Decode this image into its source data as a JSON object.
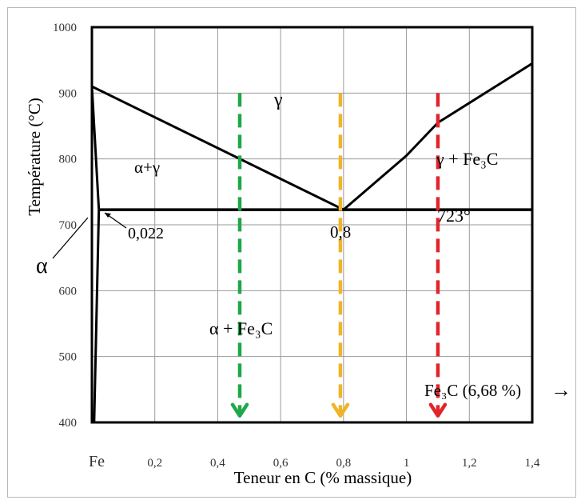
{
  "chart_data": {
    "type": "line",
    "xlabel": "Teneur en C (% massique)",
    "ylabel": "Température (°C)",
    "xlim": [
      0,
      1.4
    ],
    "ylim": [
      400,
      1000
    ],
    "x_ticks": [
      "Fe",
      "0,2",
      "0,4",
      "0,6",
      "0,8",
      "1",
      "1,2",
      "1,4"
    ],
    "x_tick_values": [
      0,
      0.2,
      0.4,
      0.6,
      0.8,
      1.0,
      1.2,
      1.4
    ],
    "y_ticks": [
      "1000",
      "900",
      "800",
      "700",
      "600",
      "500",
      "400"
    ],
    "y_tick_values": [
      1000,
      900,
      800,
      700,
      600,
      500,
      400
    ],
    "grid": true,
    "lines": [
      {
        "id": "A3",
        "points": [
          [
            0,
            910
          ],
          [
            0.8,
            723
          ]
        ]
      },
      {
        "id": "Acm",
        "points": [
          [
            0.8,
            723
          ],
          [
            1.0,
            805
          ],
          [
            1.1,
            855
          ],
          [
            1.2,
            885
          ],
          [
            1.4,
            945
          ]
        ]
      },
      {
        "id": "eutectoid",
        "points": [
          [
            0.022,
            723
          ],
          [
            1.4,
            723
          ]
        ]
      },
      {
        "id": "alpha-upper",
        "points": [
          [
            0,
            910
          ],
          [
            0.022,
            723
          ]
        ]
      },
      {
        "id": "alpha-solvus",
        "points": [
          [
            0.022,
            723
          ],
          [
            0.007,
            400
          ]
        ]
      }
    ],
    "arrows": [
      {
        "x": 0.47,
        "y_from": 900,
        "y_to": 410,
        "color": "#1fa84a"
      },
      {
        "x": 0.79,
        "y_from": 900,
        "y_to": 410,
        "color": "#f0b428"
      },
      {
        "x": 1.1,
        "y_from": 900,
        "y_to": 410,
        "color": "#e0252b"
      }
    ],
    "annotations": {
      "gamma": "γ",
      "alpha_gamma": "α+γ",
      "gamma_fe3c": "γ + Fe₃C",
      "eutectoid_temp": "723°",
      "eutectoid_comp": "0,8",
      "alpha_solubility": "0,022",
      "alpha": "α",
      "alpha_fe3c": "α + Fe₃C",
      "fe3c": "Fe₃C (6,68 %)",
      "fe3c_arrow": "→"
    }
  }
}
